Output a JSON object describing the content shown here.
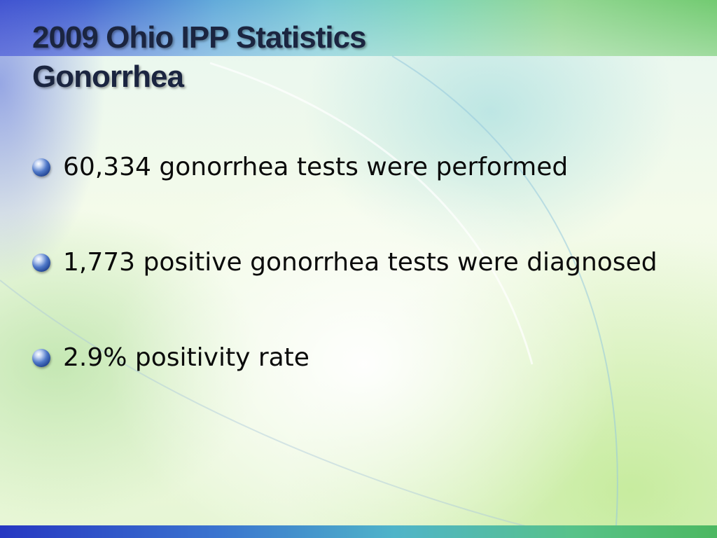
{
  "slide": {
    "title_line1": "2009 Ohio IPP Statistics",
    "title_line2": "Gonorrhea",
    "bullets": [
      "60,334 gonorrhea tests were performed",
      "1,773 positive gonorrhea tests were diagnosed",
      "2.9% positivity rate"
    ],
    "bullet_icon": "sphere-bullet-icon",
    "colors": {
      "title": "#1b2540",
      "body_text": "#0b0b0b",
      "bullet": "#2f5fb8",
      "band_left": "#2f43c8",
      "band_right": "#6bc86a"
    }
  }
}
